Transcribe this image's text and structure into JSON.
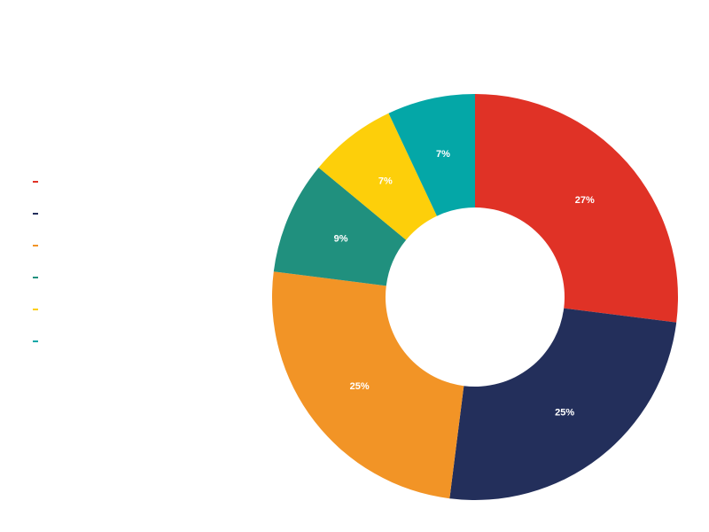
{
  "chart_data": {
    "type": "pie",
    "variant": "donut",
    "slices": [
      {
        "value": 27,
        "label": "27%",
        "color": "#e03226"
      },
      {
        "value": 25,
        "label": "25%",
        "color": "#232f5b"
      },
      {
        "value": 25,
        "label": "25%",
        "color": "#f29426"
      },
      {
        "value": 9,
        "label": "9%",
        "color": "#20907e"
      },
      {
        "value": 7,
        "label": "7%",
        "color": "#fdcf0a"
      },
      {
        "value": 7,
        "label": "7%",
        "color": "#04a7a7"
      }
    ],
    "legend_position": "left",
    "start_angle": "12 o'clock",
    "direction": "clockwise"
  }
}
